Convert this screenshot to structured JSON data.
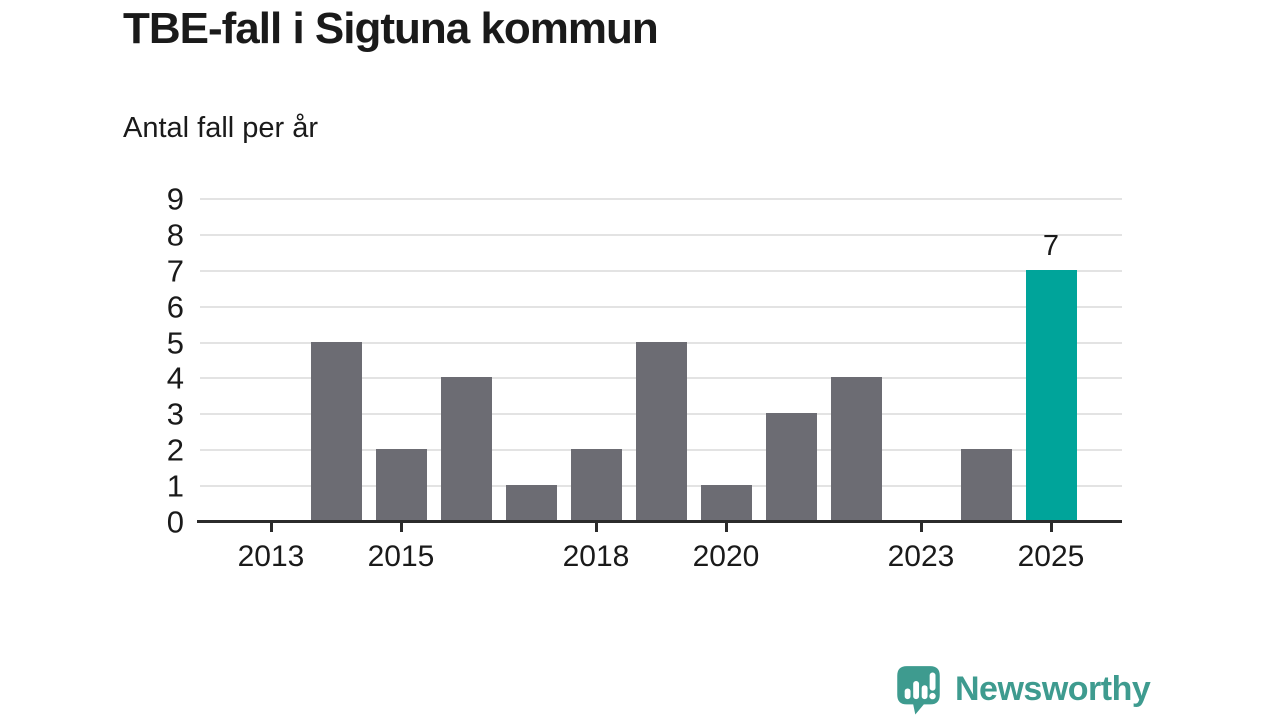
{
  "header": {
    "title": "TBE-fall i Sigtuna kommun",
    "subtitle": "Antal fall per år"
  },
  "chart_data": {
    "type": "bar",
    "title": "TBE-fall i Sigtuna kommun",
    "subtitle": "Antal fall per år",
    "categories": [
      "2013",
      "2014",
      "2015",
      "2016",
      "2017",
      "2018",
      "2019",
      "2020",
      "2021",
      "2022",
      "2023",
      "2024",
      "2025"
    ],
    "points": [
      {
        "year": "2013",
        "value": 0
      },
      {
        "year": "2014",
        "value": 5
      },
      {
        "year": "2015",
        "value": 2
      },
      {
        "year": "2016",
        "value": 4
      },
      {
        "year": "2017",
        "value": 1
      },
      {
        "year": "2018",
        "value": 2
      },
      {
        "year": "2019",
        "value": 5
      },
      {
        "year": "2020",
        "value": 1
      },
      {
        "year": "2021",
        "value": 3
      },
      {
        "year": "2022",
        "value": 4
      },
      {
        "year": "2023",
        "value": 0
      },
      {
        "year": "2024",
        "value": 2
      },
      {
        "year": "2025",
        "value": 7,
        "label": "7",
        "highlight": true
      }
    ],
    "x_ticks": [
      "2013",
      "2015",
      "2018",
      "2020",
      "2023",
      "2025"
    ],
    "y_ticks": [
      "0",
      "1",
      "2",
      "3",
      "4",
      "5",
      "6",
      "7",
      "8",
      "9"
    ],
    "ylim": [
      0,
      9
    ],
    "xlabel": "",
    "ylabel": "",
    "grid": "horizontal",
    "legend": "none",
    "colors": {
      "bar": "#6c6c73",
      "highlight": "#00a49a",
      "grid": "#e3e3e3",
      "axis": "#2b2b2b",
      "text": "#1a1a1a"
    }
  },
  "footer": {
    "brand": "Newsworthy",
    "logo_icon": "speech-bubble-bar-chart-icon",
    "logo_color": "#3e9b8f"
  }
}
